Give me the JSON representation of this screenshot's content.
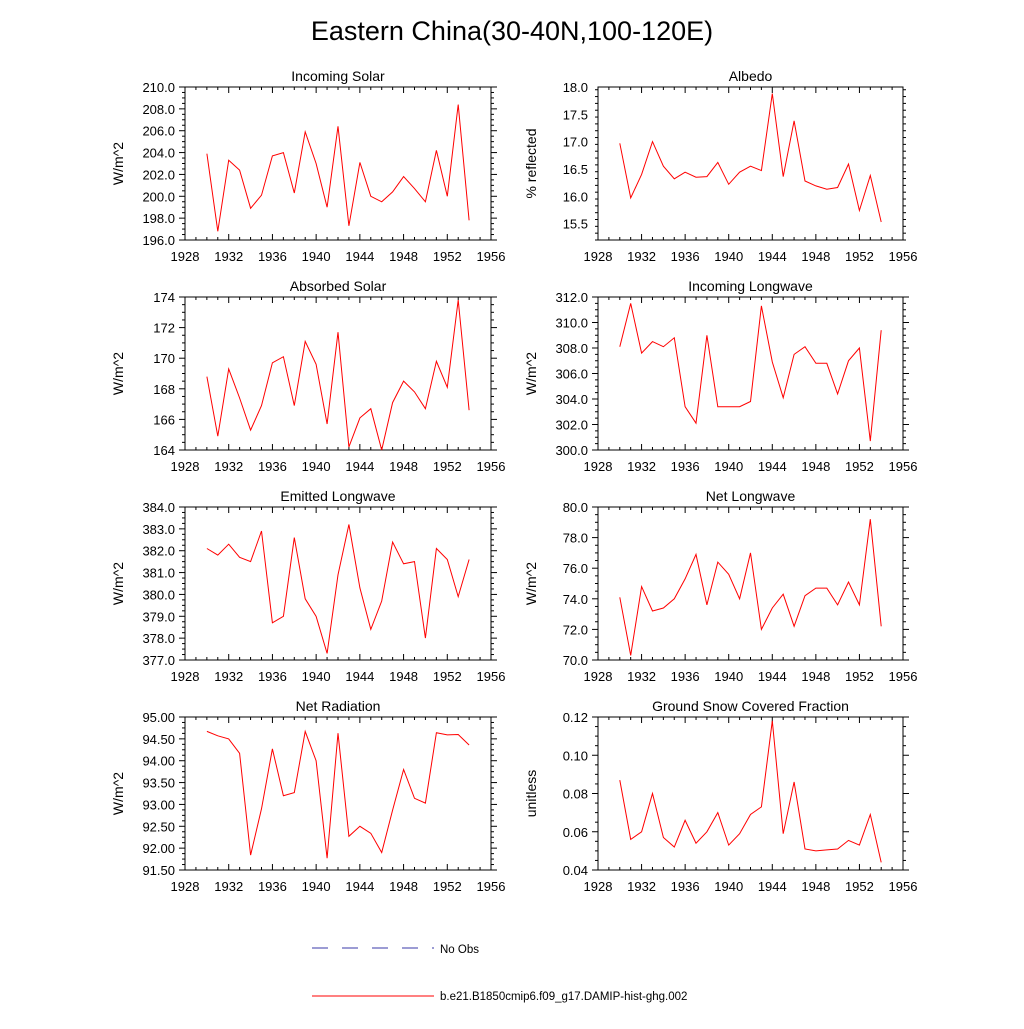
{
  "figure": {
    "title": "Eastern China(30-40N,100-120E)"
  },
  "colors": {
    "model_line": "#ff0000",
    "obs_line": "#3a3aa8",
    "axis": "#000000"
  },
  "legend": {
    "obs_label": "No Obs",
    "model_label": "b.e21.B1850cmip6.f09_g17.DAMIP-hist-ghg.002"
  },
  "chart_data": [
    {
      "type": "line",
      "title": "Incoming Solar",
      "ylabel": "W/m^2",
      "xlabel": "",
      "xlim": [
        1928,
        1956
      ],
      "xticks": [
        1928,
        1932,
        1936,
        1940,
        1944,
        1948,
        1952,
        1956
      ],
      "xtick_labels": [
        "1928",
        "1932",
        "1936",
        "1940",
        "1944",
        "1948",
        "1952",
        "1956"
      ],
      "ylim": [
        196,
        210
      ],
      "yticks": [
        196,
        198,
        200,
        202,
        204,
        206,
        208,
        210
      ],
      "ytick_labels": [
        "196.0",
        "198.0",
        "200.0",
        "202.0",
        "204.0",
        "206.0",
        "208.0",
        "210.0"
      ],
      "x": [
        1930,
        1931,
        1932,
        1933,
        1934,
        1935,
        1936,
        1937,
        1938,
        1939,
        1940,
        1941,
        1942,
        1943,
        1944,
        1945,
        1946,
        1947,
        1948,
        1949,
        1950,
        1951,
        1952,
        1953,
        1954
      ],
      "values": [
        203.9,
        196.8,
        203.3,
        202.4,
        198.9,
        200.1,
        203.7,
        204.0,
        200.3,
        205.9,
        203.0,
        199.0,
        206.4,
        197.3,
        203.1,
        200.0,
        199.5,
        200.4,
        201.8,
        200.7,
        199.5,
        204.2,
        200.0,
        208.4,
        197.8
      ]
    },
    {
      "type": "line",
      "title": "Albedo",
      "ylabel": "% reflected",
      "xlabel": "",
      "xlim": [
        1928,
        1956
      ],
      "xticks": [
        1928,
        1932,
        1936,
        1940,
        1944,
        1948,
        1952,
        1956
      ],
      "xtick_labels": [
        "1928",
        "1932",
        "1936",
        "1940",
        "1944",
        "1948",
        "1952",
        "1956"
      ],
      "ylim": [
        15.2,
        18.0
      ],
      "yticks": [
        15.5,
        16.0,
        16.5,
        17.0,
        17.5,
        18.0
      ],
      "ytick_labels": [
        "15.5",
        "16.0",
        "16.5",
        "17.0",
        "17.5",
        "18.0"
      ],
      "x": [
        1930,
        1931,
        1932,
        1933,
        1934,
        1935,
        1936,
        1937,
        1938,
        1939,
        1940,
        1941,
        1942,
        1943,
        1944,
        1945,
        1946,
        1947,
        1948,
        1949,
        1950,
        1951,
        1952,
        1953,
        1954
      ],
      "values": [
        16.97,
        15.97,
        16.4,
        17.0,
        16.55,
        16.32,
        16.44,
        16.35,
        16.36,
        16.62,
        16.22,
        16.44,
        16.55,
        16.47,
        17.88,
        16.36,
        17.38,
        16.28,
        16.19,
        16.13,
        16.16,
        16.59,
        15.74,
        16.38,
        15.53
      ]
    },
    {
      "type": "line",
      "title": "Absorbed Solar",
      "ylabel": "W/m^2",
      "xlabel": "",
      "xlim": [
        1928,
        1956
      ],
      "xticks": [
        1928,
        1932,
        1936,
        1940,
        1944,
        1948,
        1952,
        1956
      ],
      "xtick_labels": [
        "1928",
        "1932",
        "1936",
        "1940",
        "1944",
        "1948",
        "1952",
        "1956"
      ],
      "ylim": [
        164,
        174
      ],
      "yticks": [
        164,
        166,
        168,
        170,
        172,
        174
      ],
      "ytick_labels": [
        "164",
        "166",
        "168",
        "170",
        "172",
        "174"
      ],
      "x": [
        1930,
        1931,
        1932,
        1933,
        1934,
        1935,
        1936,
        1937,
        1938,
        1939,
        1940,
        1941,
        1942,
        1943,
        1944,
        1945,
        1946,
        1947,
        1948,
        1949,
        1950,
        1951,
        1952,
        1953,
        1954
      ],
      "values": [
        168.8,
        164.9,
        169.3,
        167.4,
        165.3,
        166.9,
        169.7,
        170.1,
        166.9,
        171.1,
        169.6,
        165.7,
        171.7,
        164.2,
        166.1,
        166.7,
        164.0,
        167.1,
        168.5,
        167.8,
        166.7,
        169.8,
        168.1,
        173.8,
        166.6
      ]
    },
    {
      "type": "line",
      "title": "Incoming Longwave",
      "ylabel": "W/m^2",
      "xlabel": "",
      "xlim": [
        1928,
        1956
      ],
      "xticks": [
        1928,
        1932,
        1936,
        1940,
        1944,
        1948,
        1952,
        1956
      ],
      "xtick_labels": [
        "1928",
        "1932",
        "1936",
        "1940",
        "1944",
        "1948",
        "1952",
        "1956"
      ],
      "ylim": [
        300,
        312
      ],
      "yticks": [
        300,
        302,
        304,
        306,
        308,
        310,
        312
      ],
      "ytick_labels": [
        "300.0",
        "302.0",
        "304.0",
        "306.0",
        "308.0",
        "310.0",
        "312.0"
      ],
      "x": [
        1930,
        1931,
        1932,
        1933,
        1934,
        1935,
        1936,
        1937,
        1938,
        1939,
        1940,
        1941,
        1942,
        1943,
        1944,
        1945,
        1946,
        1947,
        1948,
        1949,
        1950,
        1951,
        1952,
        1953,
        1954
      ],
      "values": [
        308.1,
        311.5,
        307.6,
        308.5,
        308.1,
        308.8,
        303.4,
        302.1,
        309.0,
        303.4,
        303.4,
        303.4,
        303.8,
        311.3,
        306.9,
        304.1,
        307.5,
        308.1,
        306.8,
        306.8,
        304.4,
        307.0,
        308.0,
        300.7,
        309.4
      ]
    },
    {
      "type": "line",
      "title": "Emitted Longwave",
      "ylabel": "W/m^2",
      "xlabel": "",
      "xlim": [
        1928,
        1956
      ],
      "xticks": [
        1928,
        1932,
        1936,
        1940,
        1944,
        1948,
        1952,
        1956
      ],
      "xtick_labels": [
        "1928",
        "1932",
        "1936",
        "1940",
        "1944",
        "1948",
        "1952",
        "1956"
      ],
      "ylim": [
        377,
        384
      ],
      "yticks": [
        377,
        378,
        379,
        380,
        381,
        382,
        383,
        384
      ],
      "ytick_labels": [
        "377.0",
        "378.0",
        "379.0",
        "380.0",
        "381.0",
        "382.0",
        "383.0",
        "384.0"
      ],
      "x": [
        1930,
        1931,
        1932,
        1933,
        1934,
        1935,
        1936,
        1937,
        1938,
        1939,
        1940,
        1941,
        1942,
        1943,
        1944,
        1945,
        1946,
        1947,
        1948,
        1949,
        1950,
        1951,
        1952,
        1953,
        1954
      ],
      "values": [
        382.1,
        381.8,
        382.3,
        381.7,
        381.5,
        382.9,
        378.7,
        379.0,
        382.6,
        379.8,
        379.0,
        377.3,
        380.9,
        383.2,
        380.3,
        378.4,
        379.7,
        382.4,
        381.4,
        381.5,
        378.0,
        382.1,
        381.6,
        379.9,
        381.6
      ]
    },
    {
      "type": "line",
      "title": "Net Longwave",
      "ylabel": "W/m^2",
      "xlabel": "",
      "xlim": [
        1928,
        1956
      ],
      "xticks": [
        1928,
        1932,
        1936,
        1940,
        1944,
        1948,
        1952,
        1956
      ],
      "xtick_labels": [
        "1928",
        "1932",
        "1936",
        "1940",
        "1944",
        "1948",
        "1952",
        "1956"
      ],
      "ylim": [
        70,
        80
      ],
      "yticks": [
        70,
        72,
        74,
        76,
        78,
        80
      ],
      "ytick_labels": [
        "70.0",
        "72.0",
        "74.0",
        "76.0",
        "78.0",
        "80.0"
      ],
      "x": [
        1930,
        1931,
        1932,
        1933,
        1934,
        1935,
        1936,
        1937,
        1938,
        1939,
        1940,
        1941,
        1942,
        1943,
        1944,
        1945,
        1946,
        1947,
        1948,
        1949,
        1950,
        1951,
        1952,
        1953,
        1954
      ],
      "values": [
        74.1,
        70.3,
        74.8,
        73.2,
        73.4,
        74.0,
        75.3,
        76.9,
        73.6,
        76.4,
        75.6,
        74.0,
        77.0,
        72.0,
        73.4,
        74.3,
        72.2,
        74.2,
        74.7,
        74.7,
        73.6,
        75.1,
        73.6,
        79.2,
        72.2
      ]
    },
    {
      "type": "line",
      "title": "Net Radiation",
      "ylabel": "W/m^2",
      "xlabel": "",
      "xlim": [
        1928,
        1956
      ],
      "xticks": [
        1928,
        1932,
        1936,
        1940,
        1944,
        1948,
        1952,
        1956
      ],
      "xtick_labels": [
        "1928",
        "1932",
        "1936",
        "1940",
        "1944",
        "1948",
        "1952",
        "1956"
      ],
      "ylim": [
        91.5,
        95.0
      ],
      "yticks": [
        91.5,
        92.0,
        92.5,
        93.0,
        93.5,
        94.0,
        94.5,
        95.0
      ],
      "ytick_labels": [
        "91.50",
        "92.00",
        "92.50",
        "93.00",
        "93.50",
        "94.00",
        "94.50",
        "95.00"
      ],
      "x": [
        1930,
        1931,
        1932,
        1933,
        1934,
        1935,
        1936,
        1937,
        1938,
        1939,
        1940,
        1941,
        1942,
        1943,
        1944,
        1945,
        1946,
        1947,
        1948,
        1949,
        1950,
        1951,
        1952,
        1953,
        1954
      ],
      "values": [
        94.67,
        94.57,
        94.5,
        94.17,
        91.84,
        92.9,
        94.27,
        93.2,
        93.27,
        94.67,
        94.0,
        91.77,
        94.63,
        92.27,
        92.5,
        92.34,
        91.9,
        92.87,
        93.8,
        93.14,
        93.03,
        94.64,
        94.59,
        94.6,
        94.36
      ]
    },
    {
      "type": "line",
      "title": "Ground Snow Covered Fraction",
      "ylabel": "unitless",
      "xlabel": "",
      "xlim": [
        1928,
        1956
      ],
      "xticks": [
        1928,
        1932,
        1936,
        1940,
        1944,
        1948,
        1952,
        1956
      ],
      "xtick_labels": [
        "1928",
        "1932",
        "1936",
        "1940",
        "1944",
        "1948",
        "1952",
        "1956"
      ],
      "ylim": [
        0.04,
        0.12
      ],
      "yticks": [
        0.04,
        0.06,
        0.08,
        0.1,
        0.12
      ],
      "ytick_labels": [
        "0.04",
        "0.06",
        "0.08",
        "0.10",
        "0.12"
      ],
      "x": [
        1930,
        1931,
        1932,
        1933,
        1934,
        1935,
        1936,
        1937,
        1938,
        1939,
        1940,
        1941,
        1942,
        1943,
        1944,
        1945,
        1946,
        1947,
        1948,
        1949,
        1950,
        1951,
        1952,
        1953,
        1954
      ],
      "values": [
        0.087,
        0.056,
        0.06,
        0.08,
        0.057,
        0.052,
        0.066,
        0.054,
        0.06,
        0.07,
        0.053,
        0.059,
        0.069,
        0.073,
        0.118,
        0.059,
        0.086,
        0.051,
        0.05,
        0.0505,
        0.051,
        0.0555,
        0.053,
        0.069,
        0.044
      ]
    }
  ]
}
